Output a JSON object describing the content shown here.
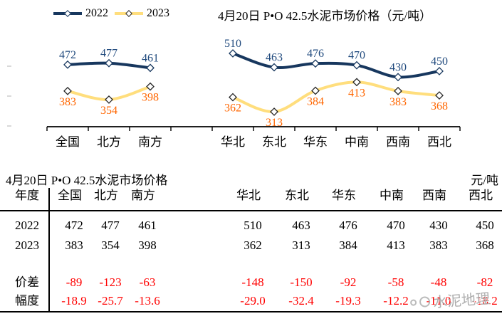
{
  "chart_data": {
    "type": "line",
    "title": "4月20日 P•O 42.5水泥市场价格（元/吨）",
    "unit": "元/吨",
    "legend_position": "top-left",
    "grid": false,
    "value_labels": true,
    "categories": [
      "全国",
      "北方",
      "南方",
      "",
      "华北",
      "东北",
      "华东",
      "中南",
      "西南",
      "西北"
    ],
    "series": [
      {
        "name": "2022",
        "color": "#17375E",
        "marker_color": "#17375E",
        "label_color": "#1F497D",
        "values": [
          472,
          477,
          461,
          null,
          510,
          463,
          476,
          470,
          430,
          450
        ]
      },
      {
        "name": "2023",
        "color": "#FFDE7D",
        "marker_color": "#262626",
        "label_color": "#FF6600",
        "values": [
          383,
          354,
          398,
          null,
          362,
          313,
          384,
          413,
          383,
          368
        ]
      }
    ]
  },
  "table": {
    "title": "4月20日 P•O 42.5水泥市场价格",
    "unit": "元/吨",
    "row_header": "年度",
    "columns": [
      "全国",
      "北方",
      "南方",
      "华北",
      "东北",
      "华东",
      "中南",
      "西南",
      "西北"
    ],
    "rows": [
      {
        "label": "2022",
        "highlight": false,
        "values": [
          "472",
          "477",
          "461",
          "510",
          "463",
          "476",
          "470",
          "430",
          "450"
        ]
      },
      {
        "label": "2023",
        "highlight": false,
        "values": [
          "383",
          "354",
          "398",
          "362",
          "313",
          "384",
          "413",
          "383",
          "368"
        ]
      },
      {
        "label": "价差",
        "highlight": true,
        "values": [
          "-89",
          "-123",
          "-63",
          "-148",
          "-150",
          "-92",
          "-58",
          "-48",
          "-82"
        ]
      },
      {
        "label": "幅度",
        "highlight": true,
        "values": [
          "-18.9",
          "-25.7",
          "-13.6",
          "-29.0",
          "-32.4",
          "-19.3",
          "-12.2",
          "-11.0",
          "-18.2"
        ]
      }
    ]
  },
  "watermark": {
    "text": "水泥地理"
  }
}
